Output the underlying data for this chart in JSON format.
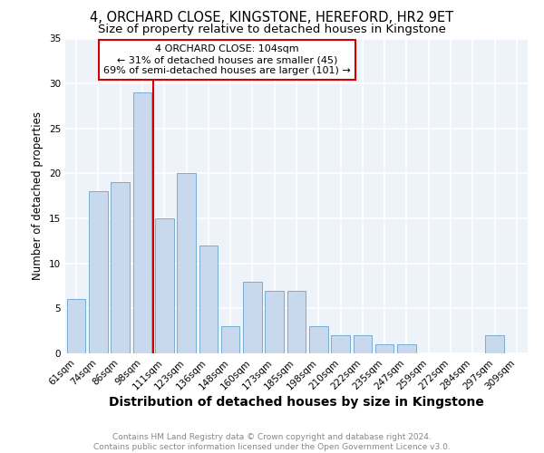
{
  "title": "4, ORCHARD CLOSE, KINGSTONE, HEREFORD, HR2 9ET",
  "subtitle": "Size of property relative to detached houses in Kingstone",
  "xlabel": "Distribution of detached houses by size in Kingstone",
  "ylabel": "Number of detached properties",
  "bar_color": "#c8d9ee",
  "bar_edge_color": "#7aadd4",
  "background_color": "#eef2f9",
  "grid_color": "white",
  "categories": [
    "61sqm",
    "74sqm",
    "86sqm",
    "98sqm",
    "111sqm",
    "123sqm",
    "136sqm",
    "148sqm",
    "160sqm",
    "173sqm",
    "185sqm",
    "198sqm",
    "210sqm",
    "222sqm",
    "235sqm",
    "247sqm",
    "259sqm",
    "272sqm",
    "284sqm",
    "297sqm",
    "309sqm"
  ],
  "values": [
    6,
    18,
    19,
    29,
    15,
    20,
    12,
    3,
    8,
    7,
    7,
    3,
    2,
    2,
    1,
    1,
    0,
    0,
    0,
    2,
    0
  ],
  "vline_color": "#cc0000",
  "annotation_text": "4 ORCHARD CLOSE: 104sqm\n← 31% of detached houses are smaller (45)\n69% of semi-detached houses are larger (101) →",
  "annotation_box_color": "white",
  "annotation_box_edge_color": "#cc0000",
  "ylim": [
    0,
    35
  ],
  "yticks": [
    0,
    5,
    10,
    15,
    20,
    25,
    30,
    35
  ],
  "footnote": "Contains HM Land Registry data © Crown copyright and database right 2024.\nContains public sector information licensed under the Open Government Licence v3.0.",
  "title_fontsize": 10.5,
  "subtitle_fontsize": 9.5,
  "xlabel_fontsize": 10,
  "ylabel_fontsize": 8.5,
  "tick_fontsize": 7.5,
  "annotation_fontsize": 8,
  "footnote_fontsize": 6.5
}
